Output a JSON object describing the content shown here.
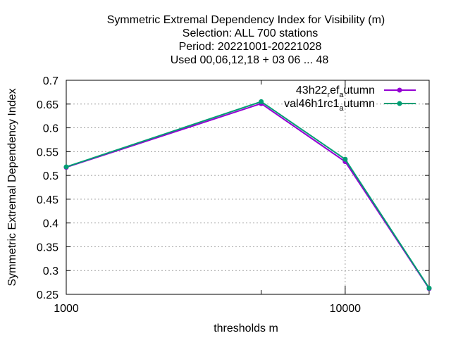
{
  "chart_data": {
    "type": "line",
    "title_lines": [
      "Symmetric Extremal Dependency Index  for Visibility (m)",
      "Selection: ALL     700 stations",
      "Period: 20221001-20221028",
      "Used  00,06,12,18  + 03 06 ... 48"
    ],
    "xlabel": "thresholds m",
    "ylabel": "Symmetric Extremal Dependency Index",
    "x_scale": "log",
    "xlim": [
      1000,
      20000
    ],
    "ylim": [
      0.25,
      0.7
    ],
    "x_ticks": [
      {
        "value": 1000,
        "label": "1000"
      },
      {
        "value": 10000,
        "label": "10000"
      }
    ],
    "x_minor_ticks": [
      5000,
      20000
    ],
    "y_ticks": [
      {
        "value": 0.25,
        "label": "0.25"
      },
      {
        "value": 0.3,
        "label": "0.3"
      },
      {
        "value": 0.35,
        "label": "0.35"
      },
      {
        "value": 0.4,
        "label": "0.4"
      },
      {
        "value": 0.45,
        "label": "0.45"
      },
      {
        "value": 0.5,
        "label": "0.5"
      },
      {
        "value": 0.55,
        "label": "0.55"
      },
      {
        "value": 0.6,
        "label": "0.6"
      },
      {
        "value": 0.65,
        "label": "0.65"
      },
      {
        "value": 0.7,
        "label": "0.7"
      }
    ],
    "grid": true,
    "legend_position": "top-right",
    "series": [
      {
        "name_main": "43h22",
        "name_sub1": "r",
        "name_mid": "ef",
        "name_sub2": "a",
        "name_tail": "utumn",
        "color": "#9400d3",
        "x": [
          1000,
          5000,
          10000,
          20000
        ],
        "y": [
          0.517,
          0.651,
          0.529,
          0.262
        ]
      },
      {
        "name_main": "val46h1rc1",
        "name_sub1": "",
        "name_mid": "",
        "name_sub2": "a",
        "name_tail": "utumn",
        "color": "#009e73",
        "x": [
          1000,
          5000,
          10000,
          20000
        ],
        "y": [
          0.518,
          0.655,
          0.534,
          0.263
        ]
      }
    ]
  }
}
